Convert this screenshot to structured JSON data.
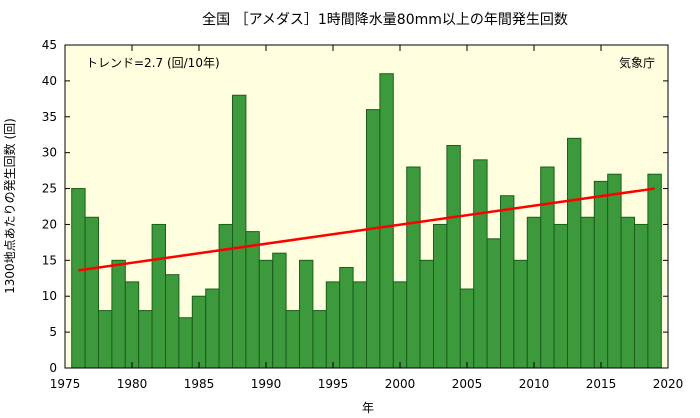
{
  "chart_data": {
    "type": "bar",
    "title": "全国 ［アメダス］1時間降水量80mm以上の年間発生回数",
    "xlabel": "年",
    "ylabel": "1300地点あたりの発生回数 (回)",
    "trend_label": "トレンド=2.7 (回/10年)",
    "source_label": "気象庁",
    "xlim": [
      1975,
      2020
    ],
    "ylim": [
      0,
      45
    ],
    "xticks": [
      1975,
      1980,
      1985,
      1990,
      1995,
      2000,
      2005,
      2010,
      2015,
      2020
    ],
    "yticks": [
      0,
      5,
      10,
      15,
      20,
      25,
      30,
      35,
      40,
      45
    ],
    "grid": false,
    "x": [
      1976,
      1977,
      1978,
      1979,
      1980,
      1981,
      1982,
      1983,
      1984,
      1985,
      1986,
      1987,
      1988,
      1989,
      1990,
      1991,
      1992,
      1993,
      1994,
      1995,
      1996,
      1997,
      1998,
      1999,
      2000,
      2001,
      2002,
      2003,
      2004,
      2005,
      2006,
      2007,
      2008,
      2009,
      2010,
      2011,
      2012,
      2013,
      2014,
      2015,
      2016,
      2017,
      2018,
      2019
    ],
    "values": [
      25,
      21,
      8,
      15,
      12,
      8,
      20,
      13,
      7,
      10,
      11,
      20,
      38,
      19,
      15,
      16,
      8,
      15,
      8,
      12,
      14,
      12,
      36,
      41,
      12,
      28,
      15,
      20,
      31,
      11,
      29,
      18,
      24,
      15,
      21,
      28,
      20,
      32,
      21,
      26,
      27,
      21,
      20,
      27
    ],
    "trend_line": {
      "x": [
        1976,
        2019
      ],
      "y": [
        13.6,
        25.0
      ]
    },
    "colors": {
      "plot_background": "#ffffe0",
      "bar_fill": "#3c9a3c",
      "bar_stroke": "#1a5e1a",
      "trend": "#ff0000",
      "axis": "#000000"
    }
  }
}
